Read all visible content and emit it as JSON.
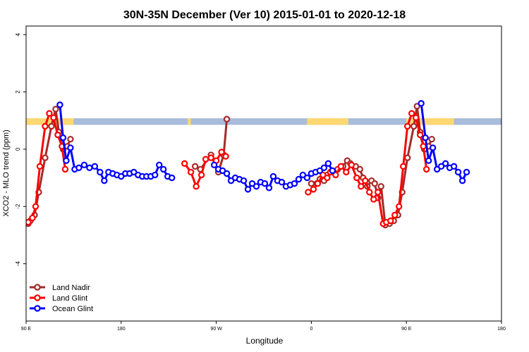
{
  "chart_data": {
    "type": "line",
    "title": "30N-35N December (Ver 10)   2015-01-01 to 2020-12-18",
    "xlabel": "Longitude",
    "ylabel": "XCO2 - MLO trend (ppm)",
    "xlim": [
      90,
      540
    ],
    "ylim": [
      -6,
      4.3
    ],
    "y_ticks": [
      {
        "value": 4,
        "label": "4"
      },
      {
        "value": 2,
        "label": "2"
      },
      {
        "value": 0,
        "label": "0"
      },
      {
        "value": -2,
        "label": "-2"
      },
      {
        "value": -4,
        "label": "-4"
      }
    ],
    "x_ticks": [
      {
        "value": 90,
        "label": "90 E"
      },
      {
        "value": 180,
        "label": "180"
      },
      {
        "value": 270,
        "label": "90 W"
      },
      {
        "value": 360,
        "label": "0"
      },
      {
        "value": 450,
        "label": "90 E"
      },
      {
        "value": 540,
        "label": "180"
      }
    ],
    "land_mask": {
      "y_range": [
        0.85,
        1.08
      ],
      "land_color": "#FDD872",
      "ocean_color": "#A8BCDC",
      "land_segments": [
        [
          90,
          135
        ],
        [
          243,
          246
        ],
        [
          356,
          395
        ],
        [
          450,
          495
        ]
      ]
    },
    "legend_position": "bottom-left",
    "series": [
      {
        "name": "Land Nadir",
        "color": "#A52A2A",
        "segments": [
          [
            [
              92,
              -2.6
            ],
            [
              94,
              -2.5
            ],
            [
              98,
              -2.3
            ],
            [
              102,
              -1.5
            ],
            [
              108,
              -0.3
            ],
            [
              114,
              0.8
            ],
            [
              118,
              1.4
            ],
            [
              121,
              0.6
            ],
            [
              125,
              0
            ],
            [
              129,
              0.1
            ],
            [
              132,
              0.35
            ]
          ],
          [
            [
              250,
              -0.6
            ],
            [
              255,
              -0.7
            ],
            [
              265,
              -0.2
            ],
            [
              272,
              -0.8
            ],
            [
              277,
              -0.2
            ],
            [
              280,
              1.05
            ]
          ],
          [
            [
              360,
              -1.2
            ],
            [
              365,
              -1.2
            ],
            [
              368,
              -1.05
            ],
            [
              372,
              -1.1
            ],
            [
              375,
              -0.9
            ],
            [
              380,
              -0.8
            ],
            [
              385,
              -0.7
            ],
            [
              390,
              -0.6
            ],
            [
              394,
              -0.4
            ],
            [
              397,
              -0.5
            ],
            [
              402,
              -0.6
            ],
            [
              406,
              -0.7
            ],
            [
              409,
              -1
            ],
            [
              413,
              -1.3
            ],
            [
              417,
              -1.1
            ],
            [
              420,
              -1.2
            ],
            [
              423,
              -1.7
            ],
            [
              426,
              -1.3
            ],
            [
              430,
              -2.65
            ],
            [
              434,
              -2.6
            ],
            [
              438,
              -2.5
            ],
            [
              442,
              -2.3
            ],
            [
              446,
              -1.5
            ],
            [
              451,
              -0.3
            ],
            [
              457,
              0.8
            ],
            [
              460,
              1.5
            ],
            [
              463,
              0.6
            ],
            [
              467,
              0
            ],
            [
              471,
              0.1
            ],
            [
              474,
              0.35
            ]
          ]
        ]
      },
      {
        "name": "Land Glint",
        "color": "#FF0000",
        "segments": [
          [
            [
              92,
              -2.55
            ],
            [
              96,
              -2.4
            ],
            [
              99,
              -2
            ],
            [
              103,
              -0.6
            ],
            [
              108,
              0.8
            ],
            [
              112,
              1.25
            ],
            [
              116,
              1.1
            ],
            [
              120,
              0.5
            ],
            [
              124,
              0.1
            ],
            [
              127,
              -0.7
            ]
          ],
          [
            [
              240,
              -0.5
            ],
            [
              246,
              -0.8
            ],
            [
              251,
              -1.3
            ],
            [
              256,
              -0.9
            ],
            [
              260,
              -0.35
            ],
            [
              265,
              -0.3
            ],
            [
              270,
              -0.4
            ],
            [
              275,
              -0.1
            ],
            [
              279,
              -0.25
            ]
          ],
          [
            [
              357,
              -1.5
            ],
            [
              362,
              -1.4
            ],
            [
              366,
              -1.2
            ],
            [
              371,
              -0.9
            ],
            [
              375,
              -1
            ],
            [
              378,
              -0.8
            ],
            [
              383,
              -0.9
            ],
            [
              388,
              -0.6
            ],
            [
              393,
              -0.8
            ],
            [
              398,
              -0.55
            ],
            [
              403,
              -1.0
            ],
            [
              407,
              -1.3
            ],
            [
              411,
              -1.1
            ],
            [
              415,
              -1.5
            ],
            [
              419,
              -1.75
            ],
            [
              423,
              -1.5
            ],
            [
              428,
              -2.6
            ],
            [
              431,
              -2.55
            ],
            [
              435,
              -2.5
            ],
            [
              439,
              -2.3
            ],
            [
              443,
              -2.0
            ],
            [
              447,
              -0.6
            ],
            [
              451,
              0.8
            ],
            [
              455,
              1.25
            ],
            [
              459,
              1.1
            ],
            [
              463,
              0.5
            ],
            [
              466,
              0.1
            ],
            [
              469,
              -0.7
            ]
          ]
        ]
      },
      {
        "name": "Ocean Glint",
        "color": "#0000FF",
        "segments": [
          [
            [
              122,
              1.55
            ],
            [
              125,
              0.4
            ],
            [
              128,
              -0.4
            ],
            [
              132,
              0.05
            ],
            [
              136,
              -0.7
            ],
            [
              140,
              -0.65
            ],
            [
              145,
              -0.55
            ],
            [
              150,
              -0.65
            ],
            [
              155,
              -0.6
            ],
            [
              160,
              -0.8
            ],
            [
              164,
              -1.1
            ],
            [
              168,
              -0.8
            ],
            [
              172,
              -0.85
            ],
            [
              176,
              -0.9
            ],
            [
              180,
              -0.95
            ],
            [
              184,
              -0.85
            ],
            [
              188,
              -0.85
            ],
            [
              192,
              -0.8
            ],
            [
              196,
              -0.9
            ],
            [
              200,
              -0.95
            ],
            [
              204,
              -0.95
            ],
            [
              208,
              -0.95
            ],
            [
              212,
              -0.9
            ],
            [
              216,
              -0.55
            ],
            [
              220,
              -0.7
            ],
            [
              224,
              -0.95
            ],
            [
              228,
              -1.0
            ]
          ],
          [
            [
              268,
              -0.55
            ],
            [
              272,
              -0.7
            ],
            [
              276,
              -0.75
            ],
            [
              280,
              -0.85
            ],
            [
              284,
              -1.1
            ],
            [
              288,
              -1.0
            ],
            [
              292,
              -1.05
            ],
            [
              296,
              -1.1
            ],
            [
              300,
              -1.4
            ],
            [
              304,
              -1.2
            ],
            [
              308,
              -1.3
            ],
            [
              312,
              -1.15
            ],
            [
              316,
              -1.2
            ],
            [
              320,
              -1.35
            ],
            [
              324,
              -0.95
            ],
            [
              328,
              -1.1
            ],
            [
              332,
              -1.15
            ],
            [
              336,
              -1.3
            ],
            [
              340,
              -1.25
            ],
            [
              344,
              -1.2
            ],
            [
              348,
              -1.05
            ],
            [
              352,
              -0.9
            ],
            [
              356,
              -1.0
            ],
            [
              360,
              -0.85
            ],
            [
              364,
              -0.8
            ],
            [
              368,
              -0.75
            ],
            [
              372,
              -0.65
            ],
            [
              376,
              -0.5
            ],
            [
              380,
              -0.75
            ]
          ],
          [
            [
              464,
              1.6
            ],
            [
              468,
              0.4
            ],
            [
              471,
              -0.4
            ],
            [
              475,
              0.05
            ],
            [
              479,
              -0.7
            ],
            [
              483,
              -0.6
            ],
            [
              487,
              -0.5
            ],
            [
              491,
              -0.65
            ],
            [
              495,
              -0.6
            ],
            [
              499,
              -0.8
            ],
            [
              503,
              -1.1
            ],
            [
              507,
              -0.8
            ]
          ]
        ]
      }
    ]
  }
}
